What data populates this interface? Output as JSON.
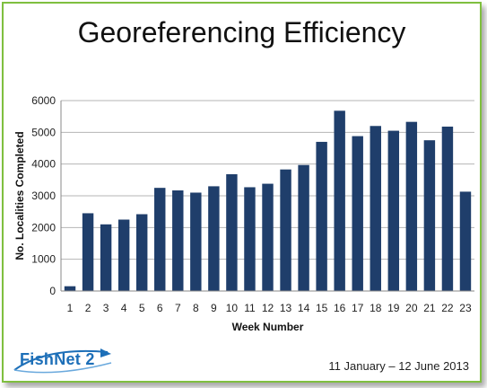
{
  "slide": {
    "logo_text": "FishNet 2",
    "date_range": "11 January – 12 June 2013"
  },
  "colors": {
    "bar": "#1f3e6b",
    "grid": "#b5b5b5",
    "border": "#7fbf3f",
    "logo": "#1d6fb8"
  },
  "chart_data": {
    "type": "bar",
    "title": "Georeferencing Efficiency",
    "xlabel": "Week Number",
    "ylabel": "No. Localities Completed",
    "categories": [
      "1",
      "2",
      "3",
      "4",
      "5",
      "6",
      "7",
      "8",
      "9",
      "10",
      "11",
      "12",
      "13",
      "14",
      "15",
      "16",
      "17",
      "18",
      "19",
      "20",
      "21",
      "22",
      "23"
    ],
    "values": [
      150,
      2450,
      2100,
      2250,
      2420,
      3250,
      3170,
      3100,
      3300,
      3680,
      3270,
      3380,
      3830,
      3970,
      4700,
      5680,
      4880,
      5200,
      5050,
      5330,
      4750,
      5180,
      3130
    ],
    "ylim": [
      0,
      6000
    ],
    "yticks": [
      0,
      1000,
      2000,
      3000,
      4000,
      5000,
      6000
    ],
    "grid": true,
    "legend": "none"
  }
}
